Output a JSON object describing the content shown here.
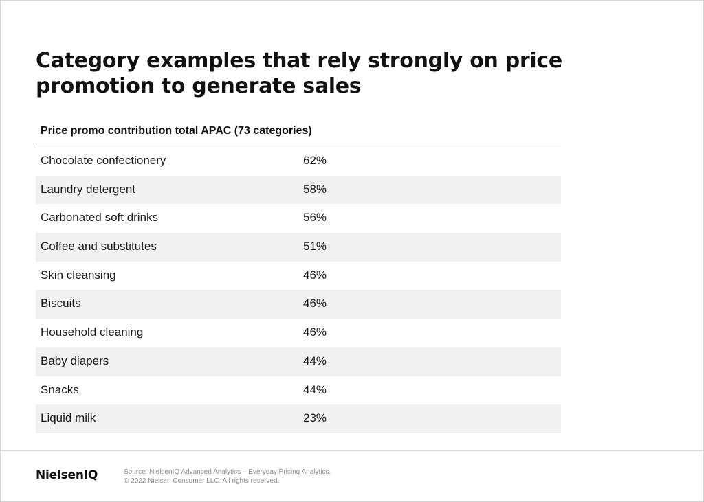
{
  "title": "Category examples that rely strongly on price promotion to generate sales",
  "table": {
    "header": "Price promo contribution total APAC (73 categories)",
    "rows": [
      {
        "category": "Chocolate confectionery",
        "value": "62%"
      },
      {
        "category": "Laundry detergent",
        "value": "58%"
      },
      {
        "category": "Carbonated soft drinks",
        "value": "56%"
      },
      {
        "category": "Coffee and substitutes",
        "value": "51%"
      },
      {
        "category": "Skin cleansing",
        "value": "46%"
      },
      {
        "category": "Biscuits",
        "value": "46%"
      },
      {
        "category": "Household cleaning",
        "value": "46%"
      },
      {
        "category": "Baby diapers",
        "value": "44%"
      },
      {
        "category": "Snacks",
        "value": "44%"
      },
      {
        "category": "Liquid milk",
        "value": "23%"
      }
    ]
  },
  "footer": {
    "logo": "NielsenIQ",
    "source_line": "Source: NielsenIQ Advanced Analytics – Everyday Pricing Analytics.",
    "copyright_line": "© 2022 Nielsen Consumer LLC. All rights reserved."
  },
  "colors": {
    "shaded_row": "#f1f1f1",
    "text": "#1a1a1a",
    "muted": "#8a8a8a"
  }
}
